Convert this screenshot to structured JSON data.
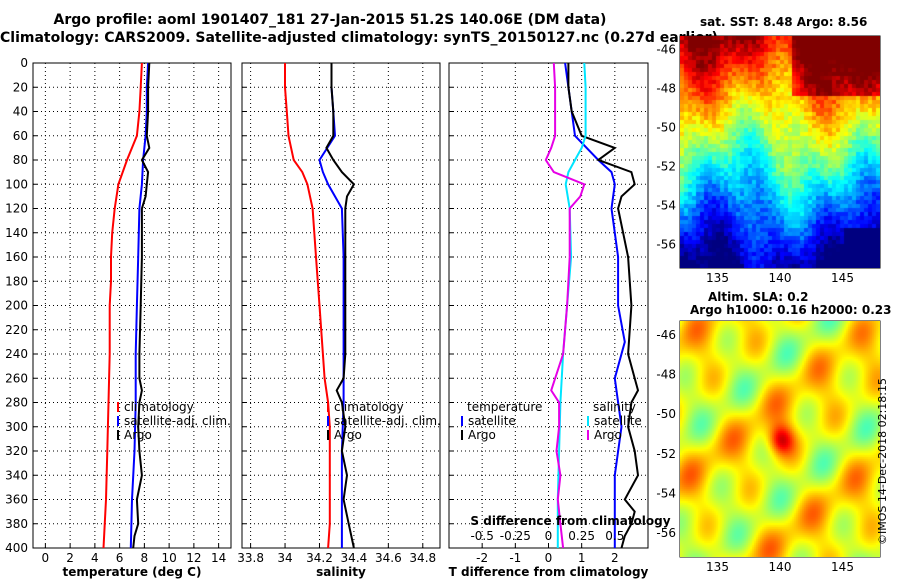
{
  "header": {
    "line1": "Argo profile: aoml 1901407_181 27-Jan-2015 51.2S 140.06E (DM data)",
    "line2": "Climatology: CARS2009. Satellite-adjusted climatology: synTS_20150127.nc (0.27d earlier)"
  },
  "colors": {
    "climatology": "#ff0000",
    "satellite": "#0000ff",
    "argo": "#000000",
    "sal_satellite": "#00e5ff",
    "sal_argo": "#e600e6"
  },
  "chart_data": [
    {
      "type": "line",
      "panel": "temperature",
      "xlabel": "temperature (deg C)",
      "xlim": [
        -1,
        15
      ],
      "xticks": [
        "0",
        "2",
        "4",
        "6",
        "8",
        "10",
        "12",
        "14"
      ],
      "ylim": [
        0,
        400
      ],
      "yticks": [
        "0",
        "20",
        "40",
        "60",
        "80",
        "100",
        "120",
        "140",
        "160",
        "180",
        "200",
        "220",
        "240",
        "260",
        "280",
        "300",
        "320",
        "340",
        "360",
        "380",
        "400"
      ],
      "legend": [
        "climatology",
        "satellite-adj. clim.",
        "Argo"
      ],
      "series": [
        {
          "name": "climatology",
          "color_key": "climatology",
          "depth": [
            0,
            20,
            40,
            60,
            80,
            100,
            120,
            140,
            160,
            180,
            200,
            240,
            280,
            320,
            360,
            400
          ],
          "values": [
            7.8,
            7.7,
            7.6,
            7.4,
            6.6,
            5.9,
            5.6,
            5.4,
            5.3,
            5.3,
            5.2,
            5.2,
            5.1,
            5.0,
            4.9,
            4.7
          ]
        },
        {
          "name": "satellite-adj. clim.",
          "color_key": "satellite",
          "depth": [
            0,
            20,
            40,
            60,
            80,
            100,
            120,
            160,
            200,
            240,
            280,
            320,
            360,
            400
          ],
          "values": [
            8.3,
            8.2,
            8.2,
            8.1,
            7.9,
            7.8,
            7.6,
            7.5,
            7.4,
            7.3,
            7.3,
            7.2,
            7.0,
            6.9
          ]
        },
        {
          "name": "Argo",
          "color_key": "argo",
          "depth": [
            0,
            20,
            40,
            60,
            70,
            80,
            90,
            100,
            110,
            120,
            160,
            200,
            240,
            260,
            270,
            280,
            300,
            320,
            340,
            360,
            380,
            390,
            400
          ],
          "values": [
            8.4,
            8.3,
            8.3,
            8.2,
            8.4,
            7.8,
            8.3,
            8.2,
            8.1,
            7.8,
            7.8,
            7.7,
            7.6,
            7.6,
            7.8,
            7.6,
            7.5,
            7.6,
            7.8,
            7.4,
            7.5,
            7.2,
            7.1
          ]
        }
      ]
    },
    {
      "type": "line",
      "panel": "salinity",
      "xlabel": "salinity",
      "xlim": [
        33.75,
        34.9
      ],
      "xticks": [
        "33.8",
        "34",
        "34.2",
        "34.4",
        "34.6",
        "34.8"
      ],
      "ylim": [
        0,
        400
      ],
      "legend": [
        "climatology",
        "satellite-adj. clim.",
        "Argo"
      ],
      "series": [
        {
          "name": "climatology",
          "color_key": "climatology",
          "depth": [
            0,
            20,
            40,
            60,
            80,
            90,
            100,
            120,
            140,
            160,
            200,
            240,
            260,
            280,
            300,
            340,
            380,
            400
          ],
          "values": [
            34.0,
            34.0,
            34.01,
            34.02,
            34.05,
            34.1,
            34.13,
            34.16,
            34.17,
            34.18,
            34.2,
            34.22,
            34.23,
            34.25,
            34.26,
            34.26,
            34.26,
            34.25
          ]
        },
        {
          "name": "satellite-adj. clim.",
          "color_key": "satellite",
          "depth": [
            0,
            20,
            40,
            60,
            80,
            90,
            100,
            120,
            160,
            200,
            240,
            280,
            320,
            360,
            400
          ],
          "values": [
            34.27,
            34.27,
            34.28,
            34.29,
            34.2,
            34.22,
            34.25,
            34.33,
            34.34,
            34.34,
            34.34,
            34.34,
            34.33,
            34.33,
            34.33
          ]
        },
        {
          "name": "Argo",
          "color_key": "argo",
          "depth": [
            0,
            20,
            40,
            60,
            70,
            80,
            90,
            100,
            110,
            120,
            160,
            200,
            240,
            260,
            270,
            280,
            300,
            320,
            340,
            360,
            380,
            400
          ],
          "values": [
            34.27,
            34.27,
            34.28,
            34.28,
            34.24,
            34.28,
            34.33,
            34.4,
            34.36,
            34.35,
            34.35,
            34.35,
            34.35,
            34.34,
            34.3,
            34.33,
            34.35,
            34.33,
            34.36,
            34.34,
            34.37,
            34.4
          ]
        }
      ]
    },
    {
      "type": "line",
      "panel": "differences",
      "xlabel": "T difference from climatology",
      "xlim": [
        -3,
        3
      ],
      "xticks": [
        "-2",
        "-1",
        "0",
        "1",
        "2"
      ],
      "x2label": "S difference from climatology",
      "x2lim": [
        -0.75,
        0.75
      ],
      "x2ticks": [
        "-0.5",
        "-0.25",
        "0",
        "0.25",
        "0.5"
      ],
      "ylim": [
        0,
        400
      ],
      "legend_temperature": {
        "title": "temperature",
        "items": [
          "satellite",
          "Argo"
        ]
      },
      "legend_salinity": {
        "title": "salinity",
        "items": [
          "satellite",
          "Argo"
        ]
      },
      "series": [
        {
          "name": "T satellite",
          "axis": "T",
          "color_key": "satellite",
          "depth": [
            0,
            20,
            40,
            60,
            80,
            90,
            100,
            120,
            160,
            200,
            230,
            260,
            300,
            340,
            380,
            400
          ],
          "values": [
            0.5,
            0.6,
            0.7,
            0.8,
            1.5,
            1.9,
            2.0,
            1.9,
            2.1,
            2.1,
            2.3,
            2.0,
            2.2,
            2.0,
            2.0,
            2.0
          ]
        },
        {
          "name": "T Argo",
          "axis": "T",
          "color_key": "argo",
          "depth": [
            0,
            20,
            40,
            60,
            70,
            80,
            90,
            100,
            110,
            120,
            160,
            200,
            240,
            270,
            280,
            300,
            320,
            340,
            360,
            370,
            380,
            390,
            400
          ],
          "values": [
            0.6,
            0.6,
            0.7,
            1.0,
            2.0,
            1.5,
            2.5,
            2.6,
            2.2,
            2.1,
            2.4,
            2.5,
            2.4,
            2.7,
            2.5,
            2.4,
            2.6,
            2.7,
            2.3,
            2.6,
            2.5,
            2.3,
            2.2
          ]
        },
        {
          "name": "S satellite",
          "axis": "S",
          "color_key": "sal_satellite",
          "depth": [
            0,
            20,
            40,
            60,
            70,
            80,
            90,
            100,
            120,
            160,
            200,
            240,
            280,
            320,
            360,
            400
          ],
          "values": [
            0.27,
            0.28,
            0.28,
            0.28,
            0.25,
            0.2,
            0.15,
            0.13,
            0.16,
            0.17,
            0.14,
            0.11,
            0.09,
            0.08,
            0.07,
            0.07
          ]
        },
        {
          "name": "S Argo",
          "axis": "S",
          "color_key": "sal_argo",
          "depth": [
            0,
            20,
            40,
            60,
            70,
            80,
            90,
            100,
            110,
            120,
            160,
            200,
            240,
            270,
            280,
            300,
            320,
            340,
            360,
            380,
            400
          ],
          "values": [
            0.04,
            0.05,
            0.05,
            0.05,
            0.02,
            -0.02,
            0.04,
            0.27,
            0.24,
            0.16,
            0.16,
            0.14,
            0.11,
            0.02,
            0.08,
            0.08,
            0.06,
            0.09,
            0.07,
            0.09,
            0.11
          ]
        }
      ]
    },
    {
      "type": "heatmap",
      "panel": "sst_map",
      "title": "sat. SST: 8.48 Argo: 8.56",
      "xticks": [
        "135",
        "140",
        "145"
      ],
      "yticks": [
        "-46",
        "-48",
        "-50",
        "-52",
        "-54",
        "-56"
      ],
      "xlim": [
        132,
        148
      ],
      "ylim": [
        -57.2,
        -45.3
      ],
      "marker": {
        "lon": 140.06,
        "lat": -51.2
      }
    },
    {
      "type": "heatmap",
      "panel": "sla_map",
      "title": "Altim. SLA: 0.2",
      "subtitle": "Argo h1000: 0.16 h2000: 0.23",
      "xticks": [
        "135",
        "140",
        "145"
      ],
      "yticks": [
        "-46",
        "-48",
        "-50",
        "-52",
        "-54",
        "-56"
      ],
      "xlim": [
        132,
        148
      ],
      "ylim": [
        -57.2,
        -45.3
      ],
      "marker": {
        "lon": 140.06,
        "lat": -51.2
      }
    }
  ],
  "credit": "©IMOS 14-Dec-2018 02:18:15"
}
